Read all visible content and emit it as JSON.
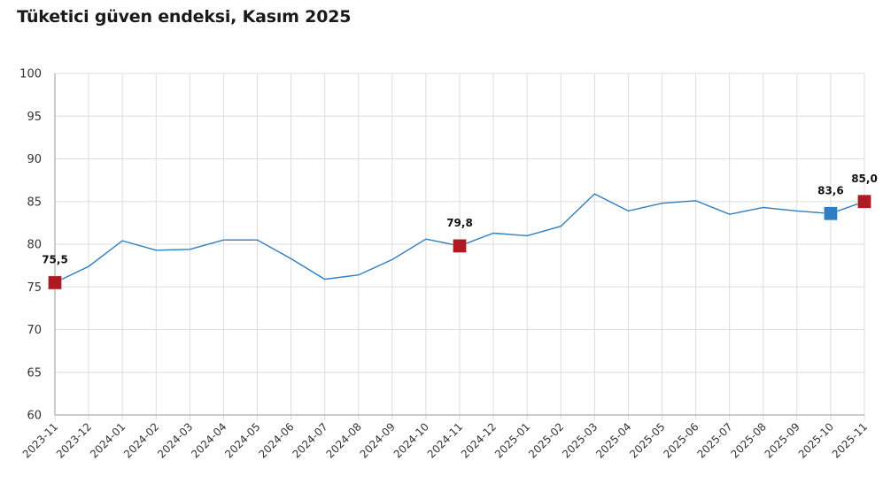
{
  "title": "Tüketici güven endeksi, Kasım 2025",
  "colors": {
    "line": "#2f7ec1",
    "highlight_red": "#ad1a21",
    "highlight_blue": "#2f7ec1",
    "grid": "#dddddd",
    "axis": "#bbbbbb"
  },
  "chart_data": {
    "type": "line",
    "title": "Tüketici güven endeksi, Kasım 2025",
    "xlabel": "",
    "ylabel": "",
    "ylim": [
      60,
      100
    ],
    "yticks": [
      60,
      65,
      70,
      75,
      80,
      85,
      90,
      95,
      100
    ],
    "grid": true,
    "legend": "none",
    "categories": [
      "2023-11",
      "2023-12",
      "2024-01",
      "2024-02",
      "2024-03",
      "2024-04",
      "2024-05",
      "2024-06",
      "2024-07",
      "2024-08",
      "2024-09",
      "2024-10",
      "2024-11",
      "2024-12",
      "2025-01",
      "2025-02",
      "2025-03",
      "2025-04",
      "2025-05",
      "2025-06",
      "2025-07",
      "2025-08",
      "2025-09",
      "2025-10",
      "2025-11"
    ],
    "series": [
      {
        "name": "Tüketici güven endeksi",
        "values": [
          75.5,
          77.4,
          80.4,
          79.3,
          79.4,
          80.5,
          80.5,
          78.3,
          75.9,
          76.4,
          78.2,
          80.6,
          79.8,
          81.3,
          81.0,
          82.1,
          85.9,
          83.9,
          84.8,
          85.1,
          83.5,
          84.3,
          83.9,
          83.6,
          85.0
        ]
      }
    ],
    "annotations": [
      {
        "category": "2023-11",
        "label": "75,5",
        "marker": "square",
        "color": "#ad1a21"
      },
      {
        "category": "2024-11",
        "label": "79,8",
        "marker": "square",
        "color": "#ad1a21"
      },
      {
        "category": "2025-10",
        "label": "83,6",
        "marker": "square",
        "color": "#2f7ec1"
      },
      {
        "category": "2025-11",
        "label": "85,0",
        "marker": "square",
        "color": "#ad1a21"
      }
    ]
  }
}
